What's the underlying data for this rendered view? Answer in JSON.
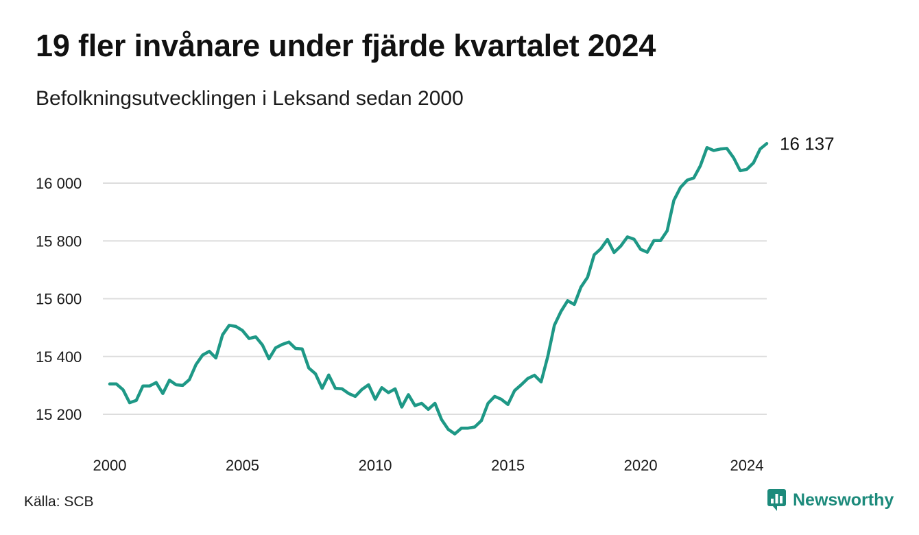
{
  "header": {
    "title": "19 fler invånare under fjärde kvartalet 2024",
    "subtitle": "Befolkningsutvecklingen i Leksand sedan 2000"
  },
  "footer": {
    "source": "Källa: SCB",
    "brand": "Newsworthy"
  },
  "colors": {
    "line": "#1e9886",
    "grid": "#dddddd",
    "brand": "#1c8a7b"
  },
  "chart_data": {
    "type": "line",
    "title": "19 fler invånare under fjärde kvartalet 2024",
    "subtitle": "Befolkningsutvecklingen i Leksand sedan 2000",
    "xlabel": "",
    "ylabel": "",
    "grid": true,
    "legend": "none",
    "x_tick_labels": [
      "2000",
      "2005",
      "2010",
      "2015",
      "2020",
      "2024"
    ],
    "y_tick_labels": [
      "15 200",
      "15 400",
      "15 600",
      "15 800",
      "16 000"
    ],
    "y_ticks": [
      15200,
      15400,
      15600,
      15800,
      16000
    ],
    "ylim": [
      15100,
      16160
    ],
    "last_value_label": "16 137",
    "series": [
      {
        "x": [
          "2000 Q1",
          "2000 Q2",
          "2000 Q3",
          "2000 Q4",
          "2001 Q1",
          "2001 Q2",
          "2001 Q3",
          "2001 Q4",
          "2002 Q1",
          "2002 Q2",
          "2002 Q3",
          "2002 Q4",
          "2003 Q1",
          "2003 Q2",
          "2003 Q3",
          "2003 Q4",
          "2004 Q1",
          "2004 Q2",
          "2004 Q3",
          "2004 Q4",
          "2005 Q1",
          "2005 Q2",
          "2005 Q3",
          "2005 Q4",
          "2006 Q1",
          "2006 Q2",
          "2006 Q3",
          "2006 Q4",
          "2007 Q1",
          "2007 Q2",
          "2007 Q3",
          "2007 Q4",
          "2008 Q1",
          "2008 Q2",
          "2008 Q3",
          "2008 Q4",
          "2009 Q1",
          "2009 Q2",
          "2009 Q3",
          "2009 Q4",
          "2010 Q1",
          "2010 Q2",
          "2010 Q3",
          "2010 Q4",
          "2011 Q1",
          "2011 Q2",
          "2011 Q3",
          "2011 Q4",
          "2012 Q1",
          "2012 Q2",
          "2012 Q3",
          "2012 Q4",
          "2013 Q1",
          "2013 Q2",
          "2013 Q3",
          "2013 Q4",
          "2014 Q1",
          "2014 Q2",
          "2014 Q3",
          "2014 Q4",
          "2015 Q1",
          "2015 Q2",
          "2015 Q3",
          "2015 Q4",
          "2016 Q1",
          "2016 Q2",
          "2016 Q3",
          "2016 Q4",
          "2017 Q1",
          "2017 Q2",
          "2017 Q3",
          "2017 Q4",
          "2018 Q1",
          "2018 Q2",
          "2018 Q3",
          "2018 Q4",
          "2019 Q1",
          "2019 Q2",
          "2019 Q3",
          "2019 Q4",
          "2020 Q1",
          "2020 Q2",
          "2020 Q3",
          "2020 Q4",
          "2021 Q1",
          "2021 Q2",
          "2021 Q3",
          "2021 Q4",
          "2022 Q1",
          "2022 Q2",
          "2022 Q3",
          "2022 Q4",
          "2023 Q1",
          "2023 Q2",
          "2023 Q3",
          "2023 Q4",
          "2024 Q1",
          "2024 Q2",
          "2024 Q3",
          "2024 Q4"
        ],
        "values": [
          15305,
          15305,
          15285,
          15240,
          15248,
          15298,
          15298,
          15310,
          15272,
          15318,
          15302,
          15300,
          15320,
          15372,
          15405,
          15418,
          15395,
          15475,
          15508,
          15504,
          15490,
          15462,
          15468,
          15440,
          15392,
          15430,
          15442,
          15450,
          15428,
          15426,
          15360,
          15340,
          15290,
          15336,
          15290,
          15288,
          15272,
          15262,
          15286,
          15302,
          15252,
          15292,
          15275,
          15288,
          15225,
          15268,
          15230,
          15238,
          15217,
          15238,
          15182,
          15148,
          15132,
          15152,
          15152,
          15156,
          15178,
          15238,
          15262,
          15252,
          15234,
          15282,
          15302,
          15324,
          15335,
          15312,
          15400,
          15508,
          15556,
          15593,
          15580,
          15640,
          15674,
          15752,
          15773,
          15805,
          15760,
          15782,
          15814,
          15806,
          15771,
          15761,
          15801,
          15801,
          15835,
          15940,
          15985,
          16010,
          16018,
          16060,
          16123,
          16113,
          16118,
          16120,
          16088,
          16043,
          16048,
          16070,
          16118,
          16137
        ]
      }
    ]
  }
}
